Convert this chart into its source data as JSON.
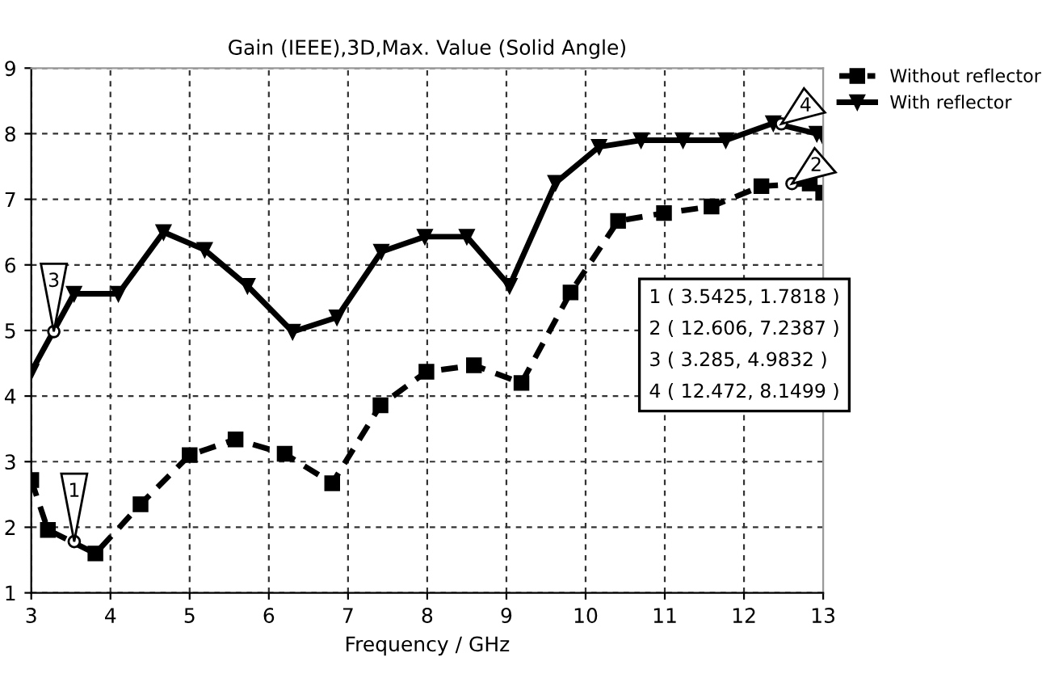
{
  "chart_data": {
    "type": "line",
    "title": "Gain (IEEE),3D,Max. Value (Solid Angle)",
    "xlabel": "Frequency / GHz",
    "xlim": [
      3,
      13
    ],
    "xticks": [
      3,
      4,
      5,
      6,
      7,
      8,
      9,
      10,
      11,
      12,
      13
    ],
    "ylim": [
      1,
      9
    ],
    "yticks": [
      1,
      2,
      3,
      4,
      5,
      6,
      7,
      8,
      9
    ],
    "grid": true,
    "legend": "top right",
    "series": [
      {
        "name": "Without reflector",
        "color": "#000000",
        "marker": "square",
        "line_style": "dashed",
        "x": [
          3.0,
          3.21,
          3.81,
          4.38,
          5.0,
          5.58,
          6.2,
          6.8,
          7.41,
          7.99,
          8.59,
          9.19,
          9.81,
          10.41,
          10.99,
          11.59,
          12.22,
          12.83,
          13.0
        ],
        "values": [
          2.72,
          1.96,
          1.6,
          2.35,
          3.1,
          3.34,
          3.12,
          2.67,
          3.86,
          4.37,
          4.47,
          4.2,
          5.58,
          6.67,
          6.79,
          6.89,
          7.2,
          7.24,
          7.1
        ]
      },
      {
        "name": "With reflector",
        "color": "#000000",
        "marker": "triangle",
        "line_style": "solid",
        "x": [
          3.0,
          3.54,
          4.1,
          4.67,
          5.19,
          5.73,
          6.3,
          6.86,
          7.42,
          7.97,
          8.5,
          9.04,
          9.62,
          10.17,
          10.7,
          11.23,
          11.77,
          12.37,
          12.92,
          13.0
        ],
        "values": [
          4.37,
          5.56,
          5.56,
          6.5,
          6.23,
          5.68,
          4.98,
          5.2,
          6.2,
          6.43,
          6.43,
          5.68,
          7.25,
          7.8,
          7.9,
          7.9,
          7.9,
          8.16,
          8.0,
          7.95
        ]
      }
    ],
    "annotations": [
      {
        "text": "1",
        "x": 3.5425,
        "y": 1.7818
      },
      {
        "text": "2",
        "x": 12.606,
        "y": 7.2387
      },
      {
        "text": "3",
        "x": 3.285,
        "y": 4.9832
      },
      {
        "text": "4",
        "x": 12.472,
        "y": 8.1499
      },
      "1 ( 3.5425, 1.7818 )",
      "2 ( 12.606, 7.2387 )",
      "3 ( 3.285, 4.9832 )",
      "4 ( 12.472, 8.1499 )"
    ]
  }
}
